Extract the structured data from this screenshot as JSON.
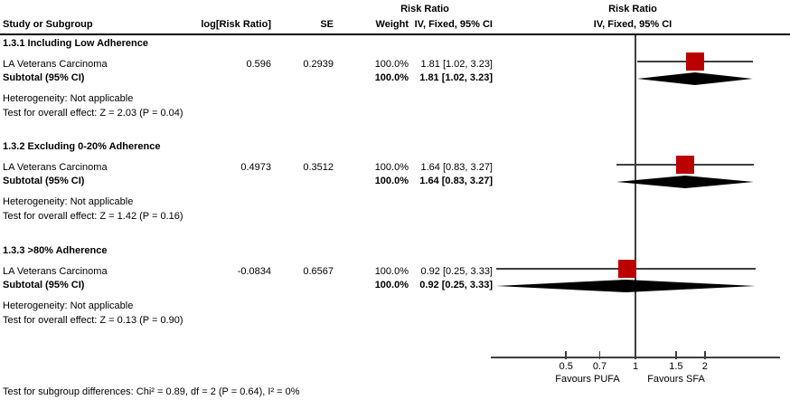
{
  "colors": {
    "marker_red": "#bb0000",
    "plot_line": "#3f3f3f",
    "diamond": "#000000",
    "text": "#000000"
  },
  "header": {
    "study_col": "Study or Subgroup",
    "log_rr_col": "log[Risk Ratio]",
    "se_col": "SE",
    "weight_col": "Weight",
    "stat_effect_line1": "Risk Ratio",
    "stat_effect_line2": "IV, Fixed, 95% CI",
    "plot_effect_line1": "Risk Ratio",
    "plot_effect_line2": "IV, Fixed, 95% CI"
  },
  "table": {
    "subgroups": [
      {
        "title": "1.3.1 Including Low Adherence",
        "studies": [
          {
            "name": "LA Veterans Carcinoma",
            "log_rr": "0.596",
            "se": "0.2939",
            "weight": "100.0%",
            "ci_text": "1.81 [1.02, 3.23]"
          }
        ],
        "subtotal_label": "Subtotal (95% CI)",
        "subtotal_weight": "100.0%",
        "subtotal_ci_text": "1.81 [1.02, 3.23]",
        "heterogeneity": "Heterogeneity: Not applicable",
        "overall_effect": "Test for overall effect: Z = 2.03 (P = 0.04)"
      },
      {
        "title": "1.3.2 Excluding 0-20% Adherence",
        "studies": [
          {
            "name": "LA Veterans Carcinoma",
            "log_rr": "0.4973",
            "se": "0.3512",
            "weight": "100.0%",
            "ci_text": "1.64 [0.83, 3.27]"
          }
        ],
        "subtotal_label": "Subtotal (95% CI)",
        "subtotal_weight": "100.0%",
        "subtotal_ci_text": "1.64 [0.83, 3.27]",
        "heterogeneity": "Heterogeneity: Not applicable",
        "overall_effect": "Test for overall effect: Z = 1.42 (P = 0.16)"
      },
      {
        "title": "1.3.3 >80% Adherence",
        "studies": [
          {
            "name": "LA Veterans Carcinoma",
            "log_rr": "-0.0834",
            "se": "0.6567",
            "weight": "100.0%",
            "ci_text": "0.92 [0.25, 3.33]"
          }
        ],
        "subtotal_label": "Subtotal (95% CI)",
        "subtotal_weight": "100.0%",
        "subtotal_ci_text": "0.92 [0.25, 3.33]",
        "heterogeneity": "Heterogeneity: Not applicable",
        "overall_effect": "Test for overall effect: Z = 0.13 (P = 0.90)"
      }
    ],
    "footer": "Test for subgroup differences: Chi² = 0.89, df = 2 (P = 0.64), I² = 0%"
  },
  "axis": {
    "tick_labels": [
      "0.5",
      "0.7",
      "1",
      "1.5",
      "2"
    ],
    "favours_left": "Favours PUFA",
    "favours_right": "Favours SFA"
  },
  "chart_data": {
    "type": "forest",
    "effect_measure": "Risk Ratio",
    "method": "IV, Fixed, 95% CI",
    "x_scale": "log",
    "x_ticks": [
      0.5,
      0.7,
      1,
      1.5,
      2
    ],
    "null_line": 1,
    "favours": [
      "Favours PUFA",
      "Favours SFA"
    ],
    "subgroups": [
      {
        "name": "1.3.1 Including Low Adherence",
        "studies": [
          {
            "study": "LA Veterans Carcinoma",
            "log_rr": 0.596,
            "se": 0.2939,
            "weight_pct": 100.0,
            "rr": 1.81,
            "ci_low": 1.02,
            "ci_high": 3.23
          }
        ],
        "subtotal": {
          "rr": 1.81,
          "ci_low": 1.02,
          "ci_high": 3.23,
          "weight_pct": 100.0
        },
        "heterogeneity": "Not applicable",
        "overall_effect_test": "Z = 2.03 (P = 0.04)"
      },
      {
        "name": "1.3.2 Excluding 0-20% Adherence",
        "studies": [
          {
            "study": "LA Veterans Carcinoma",
            "log_rr": 0.4973,
            "se": 0.3512,
            "weight_pct": 100.0,
            "rr": 1.64,
            "ci_low": 0.83,
            "ci_high": 3.27
          }
        ],
        "subtotal": {
          "rr": 1.64,
          "ci_low": 0.83,
          "ci_high": 3.27,
          "weight_pct": 100.0
        },
        "heterogeneity": "Not applicable",
        "overall_effect_test": "Z = 1.42 (P = 0.16)"
      },
      {
        "name": "1.3.3 >80% Adherence",
        "studies": [
          {
            "study": "LA Veterans Carcinoma",
            "log_rr": -0.0834,
            "se": 0.6567,
            "weight_pct": 100.0,
            "rr": 0.92,
            "ci_low": 0.25,
            "ci_high": 3.33
          }
        ],
        "subtotal": {
          "rr": 0.92,
          "ci_low": 0.25,
          "ci_high": 3.33,
          "weight_pct": 100.0
        },
        "heterogeneity": "Not applicable",
        "overall_effect_test": "Z = 0.13 (P = 0.90)"
      }
    ],
    "subgroup_difference_test": "Chi² = 0.89, df = 2 (P = 0.64), I² = 0%"
  }
}
